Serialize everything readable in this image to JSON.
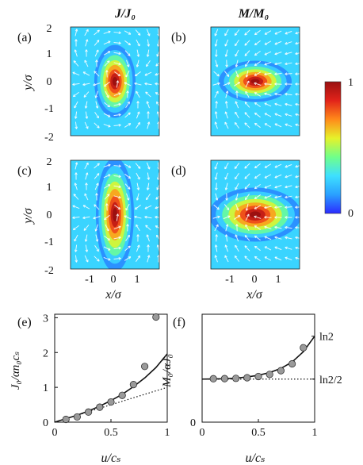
{
  "column_titles": {
    "left": "J/J₀",
    "right": "M/M₀"
  },
  "panel_labels": [
    "(a)",
    "(b)",
    "(c)",
    "(d)",
    "(e)",
    "(f)"
  ],
  "colorbar": {
    "min_label": "0",
    "max_label": "1",
    "colors": [
      "#2b2bff",
      "#2aa0ff",
      "#3ee0ff",
      "#70ff8a",
      "#e6f22a",
      "#ff8a1a",
      "#e2231a",
      "#9a1010"
    ]
  },
  "map_axes": {
    "xlabel": "x/σ",
    "ylabel": "y/σ",
    "y_ticks": [
      "2",
      "1",
      "0",
      "-1",
      "-2"
    ],
    "x_ticks": [
      "-1",
      "0",
      "1"
    ]
  },
  "chart_data": [
    {
      "panel": "e",
      "type": "scatter",
      "xlabel": "u/cₛ",
      "ylabel": "J₀/αn₀cₛ",
      "xlim": [
        0,
        1
      ],
      "ylim": [
        0,
        3.1
      ],
      "x_ticks": [
        "0",
        "0.5",
        "1"
      ],
      "y_ticks": [
        "0",
        "1",
        "2",
        "3"
      ],
      "points": {
        "x": [
          0.1,
          0.2,
          0.3,
          0.4,
          0.5,
          0.6,
          0.7,
          0.8,
          0.9
        ],
        "y": [
          0.08,
          0.15,
          0.29,
          0.43,
          0.58,
          0.77,
          1.08,
          1.6,
          3.02
        ]
      },
      "curve_solid": {
        "x": [
          0.0,
          0.1,
          0.2,
          0.3,
          0.4,
          0.5,
          0.6,
          0.7,
          0.8,
          0.9,
          1.0
        ],
        "y": [
          0.0,
          0.1,
          0.2,
          0.32,
          0.46,
          0.62,
          0.8,
          1.02,
          1.27,
          1.57,
          1.96
        ]
      },
      "curve_dotted": {
        "x": [
          0,
          1
        ],
        "y": [
          0,
          1
        ]
      }
    },
    {
      "panel": "f",
      "type": "scatter",
      "xlabel": "u/cₛ",
      "ylabel": "M₀/αJ₀",
      "xlim": [
        0,
        1
      ],
      "ylim": [
        0,
        0.87
      ],
      "x_ticks": [
        "0",
        "0.5",
        "1"
      ],
      "y_ticks": [
        "0"
      ],
      "right_ticks": [
        {
          "label": "ln2",
          "value": 0.693
        },
        {
          "label": "ln2/2",
          "value": 0.347
        }
      ],
      "points": {
        "x": [
          0.1,
          0.2,
          0.3,
          0.4,
          0.5,
          0.6,
          0.7,
          0.8,
          0.9
        ],
        "y": [
          0.35,
          0.351,
          0.353,
          0.358,
          0.368,
          0.385,
          0.415,
          0.47,
          0.6
        ]
      },
      "curve_solid": {
        "x": [
          0.0,
          0.1,
          0.2,
          0.3,
          0.4,
          0.5,
          0.6,
          0.7,
          0.8,
          0.9,
          1.0
        ],
        "y": [
          0.347,
          0.348,
          0.35,
          0.355,
          0.364,
          0.378,
          0.4,
          0.433,
          0.485,
          0.568,
          0.693
        ]
      },
      "curve_dotted": {
        "x": [
          0,
          1
        ],
        "y": [
          0.347,
          0.347
        ]
      }
    }
  ]
}
